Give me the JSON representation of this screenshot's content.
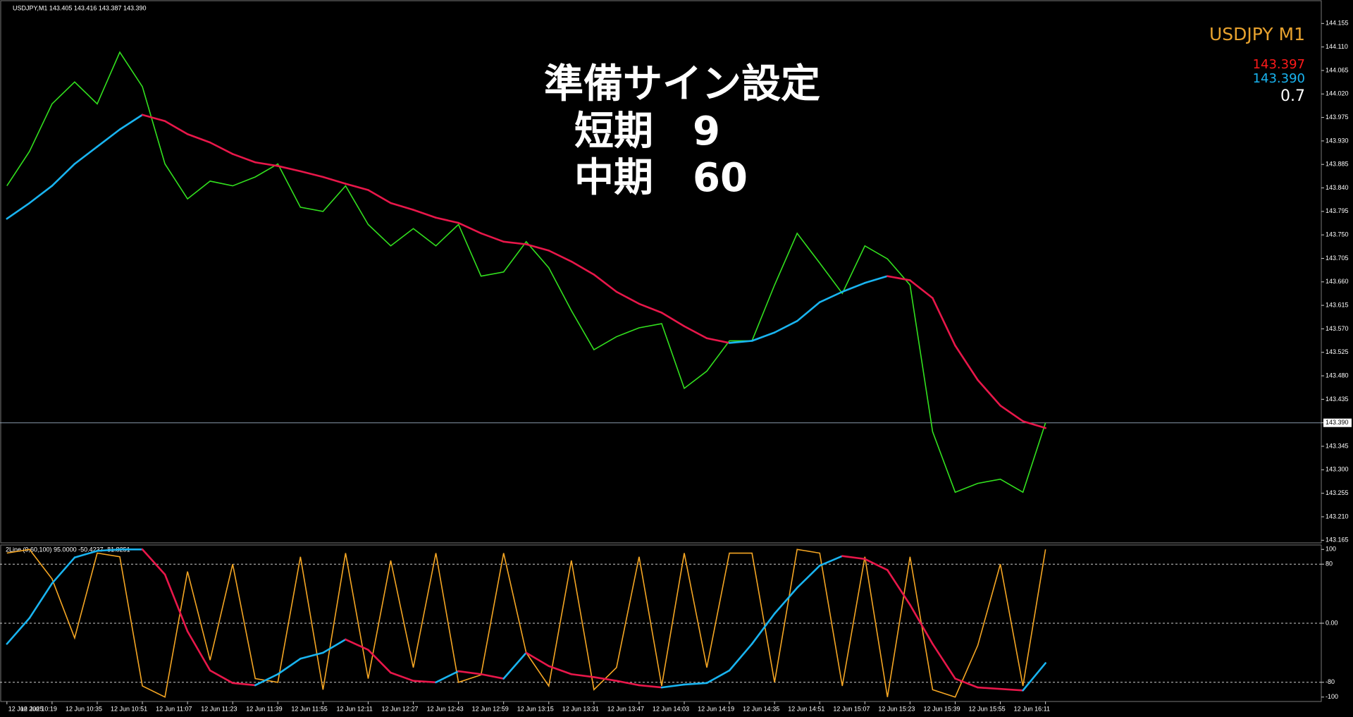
{
  "header": {
    "symbol_info": "USDJPY,M1  143.405 143.416 143.387 143.390"
  },
  "overlay": {
    "title": "準備サイン設定",
    "line1": "短期　9",
    "line2": "中期　60"
  },
  "info_panel": {
    "symbol": "USDJPY M1",
    "value1": "143.397",
    "value2": "143.390",
    "spread": "0.7"
  },
  "chart_data": [
    {
      "type": "line",
      "ylim": [
        143.16,
        144.2
      ],
      "yticks": [
        144.155,
        {
          "value": 144.11,
          "label": "144.110"
        },
        144.065,
        {
          "value": 144.02,
          "label": "144.020"
        },
        143.975,
        {
          "value": 143.93,
          "label": "143.930"
        },
        143.885,
        {
          "value": 143.84,
          "label": "143.840"
        },
        143.795,
        {
          "value": 143.75,
          "label": "143.750"
        },
        143.705,
        {
          "value": 143.66,
          "label": "143.660"
        },
        143.615,
        {
          "value": 143.57,
          "label": "143.570"
        },
        143.525,
        {
          "value": 143.48,
          "label": "143.480"
        },
        143.435,
        {
          "value": 143.39,
          "label": "143.390"
        },
        143.345,
        {
          "value": 143.3,
          "label": "143.300"
        },
        143.255,
        {
          "value": 143.21,
          "label": "143.210"
        },
        143.165
      ],
      "price_line": 143.39,
      "series": [
        {
          "color": "#32e01e",
          "values": [
            143.844,
            143.91,
            144.001,
            144.043,
            144.001,
            144.1,
            144.034,
            143.886,
            143.819,
            143.853,
            143.844,
            143.861,
            143.886,
            143.803,
            143.795,
            143.844,
            143.77,
            143.729,
            143.762,
            143.729,
            143.77,
            143.671,
            143.679,
            143.737,
            143.687,
            143.605,
            143.53,
            143.555,
            143.572,
            143.58,
            143.456,
            143.489,
            143.547,
            143.547,
            143.654,
            143.753,
            143.696,
            143.638,
            143.729,
            143.704,
            143.654,
            143.373,
            143.257,
            143.274,
            143.282,
            143.257,
            143.39
          ]
        },
        {
          "up_color": "#19b4f0",
          "down_color": "#e8174a",
          "values": [
            143.781,
            143.811,
            143.844,
            143.886,
            143.919,
            143.952,
            143.98,
            143.968,
            143.943,
            143.927,
            143.905,
            143.889,
            143.882,
            143.872,
            143.861,
            143.848,
            143.836,
            143.811,
            143.798,
            143.783,
            143.773,
            143.753,
            143.737,
            143.732,
            143.72,
            143.699,
            143.674,
            143.641,
            143.618,
            143.601,
            143.575,
            143.552,
            143.543,
            143.547,
            143.563,
            143.585,
            143.621,
            143.641,
            143.658,
            143.671,
            143.663,
            143.629,
            143.538,
            143.472,
            143.423,
            143.393,
            143.38
          ]
        }
      ]
    },
    {
      "type": "line",
      "title": "2Line (9,60,100) 95.0000 -50.4237 -81.8251",
      "categories": [
        "12 Jun 2025",
        null,
        "12 Jun 10:19",
        null,
        "12 Jun 10:35",
        null,
        "12 Jun 10:51",
        null,
        "12 Jun 11:07",
        null,
        "12 Jun 11:23",
        null,
        "12 Jun 11:39",
        null,
        "12 Jun 11:55",
        null,
        "12 Jun 12:11",
        null,
        "12 Jun 12:27",
        null,
        "12 Jun 12:43",
        null,
        "12 Jun 12:59",
        null,
        "12 Jun 13:15",
        null,
        "12 Jun 13:31",
        null,
        "12 Jun 13:47",
        null,
        "12 Jun 14:03",
        null,
        "12 Jun 14:19",
        null,
        "12 Jun 14:35",
        null,
        "12 Jun 14:51",
        null,
        "12 Jun 15:07",
        null,
        "12 Jun 15:23",
        null,
        "12 Jun 15:39",
        null,
        "12 Jun 15:55",
        null,
        "12 Jun 16:11"
      ],
      "ylim": [
        -106,
        106
      ],
      "yticks": [
        100,
        80,
        {
          "value": 0,
          "label": "0.00"
        },
        -80,
        -100
      ],
      "grid_levels": [
        80,
        0,
        -80
      ],
      "series": [
        {
          "color": "#f5a623",
          "values": [
            95,
            100,
            60,
            -20,
            95,
            90,
            -85,
            -100,
            70,
            -50,
            80,
            -75,
            -80,
            90,
            -90,
            95,
            -75,
            85,
            -60,
            95,
            -80,
            -70,
            95,
            -40,
            -85,
            85,
            -90,
            -60,
            90,
            -85,
            95,
            -60,
            95,
            95,
            -80,
            100,
            95,
            -85,
            90,
            -100,
            90,
            -90,
            -100,
            -30,
            80,
            -85,
            100
          ]
        },
        {
          "up_color": "#19b4f0",
          "down_color": "#e8174a",
          "values": [
            -28,
            7,
            54,
            89,
            98,
            100,
            100,
            66,
            -11,
            -64,
            -81,
            -84,
            -69,
            -48,
            -40,
            -22,
            -36,
            -67,
            -78,
            -80,
            -65,
            -69,
            -75,
            -40,
            -58,
            -69,
            -73,
            -78,
            -84,
            -87,
            -83,
            -81,
            -64,
            -28,
            13,
            48,
            78,
            91,
            87,
            72,
            25,
            -28,
            -75,
            -87,
            -89,
            -91,
            -54
          ]
        }
      ]
    }
  ]
}
